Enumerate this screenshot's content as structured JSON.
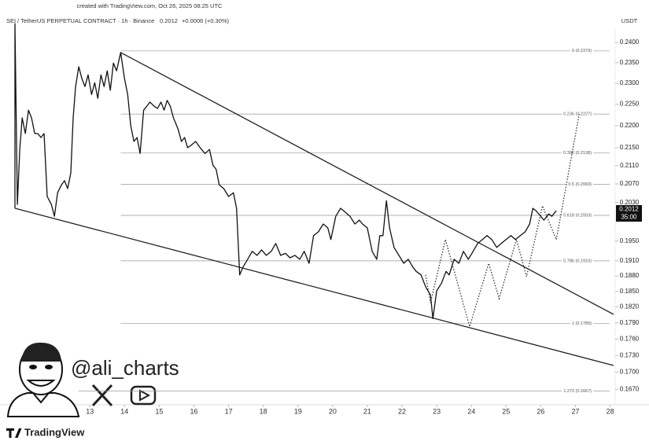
{
  "chart_data": {
    "type": "line",
    "watermark": "created with TradingView.com, Oct 26, 2025 08:25 UTC",
    "symbol": "SEI / TetherUS PERPETUAL CONTRACT · 1h · Binance",
    "last_price": "0.2012",
    "change": "+0.0006 (+0.30%)",
    "currency": "USDT",
    "price_tag": "0.2012",
    "countdown": "35:00",
    "author": "@ali_charts",
    "brand": "TradingView",
    "log_scale": true,
    "xlim": [
      10.75,
      28.1
    ],
    "ylim": [
      0.1643,
      0.2438
    ],
    "xticks": [
      13,
      14,
      15,
      16,
      17,
      18,
      19,
      20,
      21,
      22,
      23,
      24,
      25,
      26,
      27,
      28
    ],
    "yticks": [
      {
        "value": 0.24,
        "label": "0.2400"
      },
      {
        "value": 0.235,
        "label": "0.2350"
      },
      {
        "value": 0.23,
        "label": "0.2300"
      },
      {
        "value": 0.225,
        "label": "0.2250"
      },
      {
        "value": 0.22,
        "label": "0.2200"
      },
      {
        "value": 0.215,
        "label": "0.2150"
      },
      {
        "value": 0.211,
        "label": "0.2110"
      },
      {
        "value": 0.207,
        "label": "0.2070"
      },
      {
        "value": 0.203,
        "label": "0.2030"
      },
      {
        "value": 0.195,
        "label": "0.1950"
      },
      {
        "value": 0.191,
        "label": "0.1910"
      },
      {
        "value": 0.188,
        "label": "0.1880"
      },
      {
        "value": 0.185,
        "label": "0.1850"
      },
      {
        "value": 0.182,
        "label": "0.1820"
      },
      {
        "value": 0.179,
        "label": "0.1790"
      },
      {
        "value": 0.176,
        "label": "0.1760"
      },
      {
        "value": 0.173,
        "label": "0.1730"
      },
      {
        "value": 0.17,
        "label": "0.1700"
      },
      {
        "value": 0.167,
        "label": "0.1670"
      }
    ],
    "fib_levels": [
      {
        "value": 0.2379,
        "label": "0 (0.2379)"
      },
      {
        "value": 0.2227,
        "label": "0.236 (0.2227)"
      },
      {
        "value": 0.2138,
        "label": "0.382 (0.2138)"
      },
      {
        "value": 0.2069,
        "label": "0.5 (0.2069)"
      },
      {
        "value": 0.2003,
        "label": "0.618 (0.2003)"
      },
      {
        "value": 0.191,
        "label": "0.786 (0.1910)"
      },
      {
        "value": 0.1789,
        "label": "1 (0.1789)"
      },
      {
        "value": 0.1667,
        "label": "1.272 (0.1667)"
      }
    ],
    "fib_start": 13.89,
    "trendlines": [
      {
        "x": [
          13.89,
          28.1
        ],
        "values": [
          0.2375,
          0.1806
        ]
      },
      {
        "x": [
          10.84,
          28.1
        ],
        "values": [
          0.2018,
          0.1712
        ]
      }
    ],
    "price": {
      "color": "#111111",
      "x": [
        10.84,
        10.84,
        10.91,
        10.98,
        11.05,
        11.14,
        11.23,
        11.32,
        11.41,
        11.5,
        11.59,
        11.68,
        11.77,
        11.89,
        11.98,
        12.07,
        12.18,
        12.27,
        12.36,
        12.45,
        12.52,
        12.59,
        12.68,
        12.77,
        12.86,
        12.95,
        13.05,
        13.14,
        13.23,
        13.32,
        13.41,
        13.5,
        13.59,
        13.68,
        13.77,
        13.89,
        14.0,
        14.09,
        14.18,
        14.27,
        14.36,
        14.45,
        14.55,
        14.64,
        14.73,
        14.86,
        14.95,
        15.05,
        15.14,
        15.23,
        15.32,
        15.41,
        15.55,
        15.64,
        15.73,
        15.82,
        15.91,
        16.05,
        16.18,
        16.32,
        16.45,
        16.55,
        16.64,
        16.73,
        16.86,
        17.0,
        17.14,
        17.23,
        17.32,
        17.41,
        17.55,
        17.68,
        17.82,
        17.95,
        18.09,
        18.23,
        18.36,
        18.5,
        18.64,
        18.77,
        18.91,
        19.05,
        19.18,
        19.32,
        19.45,
        19.59,
        19.73,
        19.86,
        19.95,
        20.09,
        20.23,
        20.36,
        20.5,
        20.64,
        20.77,
        20.86,
        21.0,
        21.14,
        21.27,
        21.36,
        21.45,
        21.55,
        21.64,
        21.77,
        21.91,
        22.05,
        22.18,
        22.32,
        22.41,
        22.55,
        22.68,
        22.82,
        22.89,
        23.0,
        23.14,
        23.27,
        23.36,
        23.5,
        23.64,
        23.77,
        23.91,
        24.05,
        24.18,
        24.32,
        24.45,
        24.59,
        24.73,
        24.86,
        25.0,
        25.14,
        25.27,
        25.41,
        25.55,
        25.68,
        25.77,
        25.86,
        26.0,
        26.09,
        26.23,
        26.32,
        26.45
      ],
      "values": [
        0.2018,
        0.2448,
        0.2026,
        0.2146,
        0.2218,
        0.2182,
        0.2236,
        0.2218,
        0.2182,
        0.2182,
        0.2173,
        0.2182,
        0.2043,
        0.2026,
        0.2001,
        0.2051,
        0.2068,
        0.2077,
        0.206,
        0.2094,
        0.2218,
        0.2292,
        0.234,
        0.2311,
        0.2292,
        0.232,
        0.2273,
        0.2301,
        0.2264,
        0.232,
        0.2292,
        0.233,
        0.2283,
        0.2349,
        0.233,
        0.2375,
        0.2311,
        0.2273,
        0.22,
        0.2164,
        0.2173,
        0.2137,
        0.2236,
        0.2245,
        0.2255,
        0.2245,
        0.224,
        0.2255,
        0.2236,
        0.2259,
        0.2245,
        0.2218,
        0.2191,
        0.2164,
        0.2173,
        0.215,
        0.2155,
        0.2164,
        0.215,
        0.2137,
        0.2146,
        0.2111,
        0.2102,
        0.2068,
        0.206,
        0.2043,
        0.2051,
        0.2018,
        0.1882,
        0.1897,
        0.1913,
        0.1929,
        0.1921,
        0.1932,
        0.1921,
        0.1929,
        0.1945,
        0.1921,
        0.1925,
        0.1916,
        0.1921,
        0.1913,
        0.1929,
        0.1905,
        0.1961,
        0.1969,
        0.1985,
        0.1977,
        0.1953,
        0.2001,
        0.2018,
        0.201,
        0.2001,
        0.1985,
        0.1993,
        0.1985,
        0.1977,
        0.1929,
        0.1913,
        0.1961,
        0.1961,
        0.2034,
        0.1977,
        0.1937,
        0.1921,
        0.1905,
        0.1913,
        0.1897,
        0.1889,
        0.1882,
        0.1859,
        0.1843,
        0.1798,
        0.1851,
        0.1866,
        0.1889,
        0.1882,
        0.1913,
        0.1905,
        0.1929,
        0.1913,
        0.1929,
        0.1945,
        0.1953,
        0.1961,
        0.1953,
        0.1937,
        0.1945,
        0.1953,
        0.1961,
        0.1953,
        0.1961,
        0.1969,
        0.1985,
        0.2018,
        0.2013,
        0.2001,
        0.1993,
        0.2006,
        0.2001,
        0.2013
      ]
    },
    "projection": {
      "color": "#333333",
      "x": [
        22.68,
        22.82,
        23.25,
        23.95,
        24.5,
        24.8,
        25.3,
        25.59,
        26.05,
        26.45,
        27.11
      ],
      "values": [
        0.1882,
        0.1828,
        0.1953,
        0.1783,
        0.1905,
        0.1836,
        0.1953,
        0.1879,
        0.2023,
        0.1953,
        0.2227
      ]
    }
  }
}
